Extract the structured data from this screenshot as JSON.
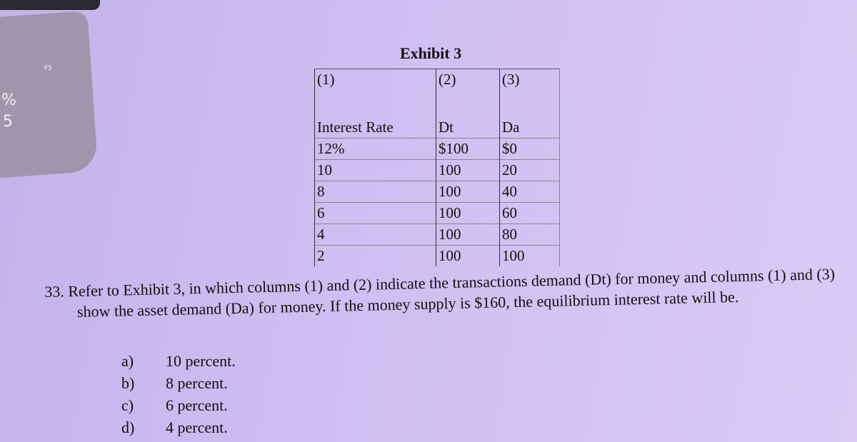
{
  "keyboard": {
    "keys": [
      "F5",
      "%",
      "5"
    ]
  },
  "exhibit": {
    "title": "Exhibit 3",
    "column_numbers": [
      "(1)",
      "(2)",
      "(3)"
    ],
    "headers": [
      "Interest Rate",
      "Dt",
      "Da"
    ],
    "rows": [
      [
        "12%",
        "$100",
        "$0"
      ],
      [
        "10",
        "100",
        "20"
      ],
      [
        "8",
        "100",
        "40"
      ],
      [
        "6",
        "100",
        "60"
      ],
      [
        "4",
        "100",
        "80"
      ],
      [
        "2",
        "100",
        "100"
      ]
    ]
  },
  "question": {
    "number": "33.",
    "text": "Refer to Exhibit 3, in which columns (1) and (2) indicate the transactions demand (Dt) for money and columns (1) and (3) show the asset demand (Da) for money. If the money supply is $160, the equilibrium interest rate will be.",
    "options": [
      {
        "letter": "a)",
        "text": "10 percent."
      },
      {
        "letter": "b)",
        "text": "8 percent."
      },
      {
        "letter": "c)",
        "text": "6 percent."
      },
      {
        "letter": "d)",
        "text": "4 percent."
      }
    ]
  }
}
